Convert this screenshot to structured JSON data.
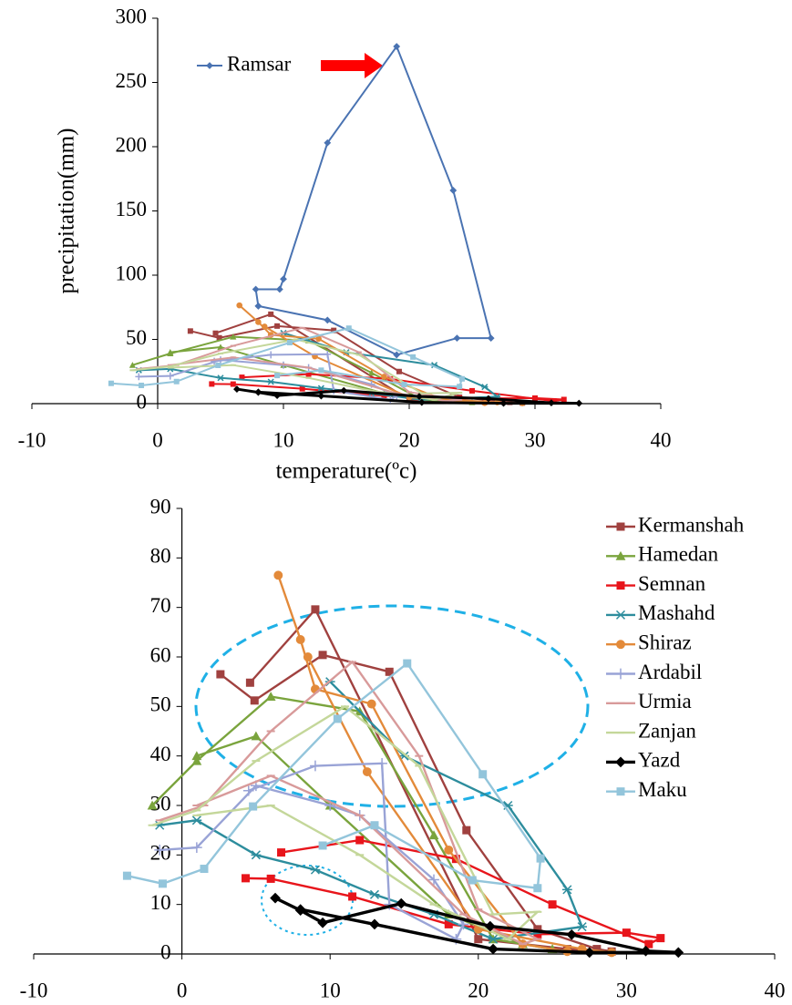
{
  "chart_data": [
    {
      "type": "line",
      "xlabel": "temperature(ºc)",
      "ylabel": "precipitation(mm)",
      "xlim": [
        -10,
        40
      ],
      "xticks": [
        -10,
        0,
        10,
        20,
        30,
        40
      ],
      "ylim": [
        0,
        300
      ],
      "yticks": [
        0,
        50,
        100,
        150,
        200,
        250,
        300
      ],
      "legend": "annotation",
      "series": [
        {
          "name": "Ramsar",
          "color": "#4a73b2",
          "marker": "diamond",
          "x": [
            8,
            7.8,
            9.7,
            10,
            13.5,
            19,
            23.5,
            26.5,
            23.8,
            19,
            13.5,
            8
          ],
          "values": [
            76,
            89,
            89,
            97,
            203,
            278,
            166,
            51,
            51,
            38,
            65,
            76
          ]
        },
        {
          "color": "#a0413f",
          "marker": "square",
          "x": [
            2.6,
            4.9,
            9.5,
            14,
            19.2,
            24,
            28,
            29,
            26,
            20,
            9,
            4.6
          ],
          "values": [
            56.5,
            51.2,
            60.4,
            57,
            25,
            5,
            1,
            0.5,
            1,
            3,
            69.6,
            54.8
          ]
        },
        {
          "color": "#7aa43d",
          "marker": "triangle",
          "x": [
            -2,
            1,
            6,
            12,
            17,
            21,
            25,
            23,
            18,
            10,
            5,
            1
          ],
          "values": [
            30,
            39,
            52,
            49,
            24,
            3,
            1,
            2,
            8,
            30,
            44,
            40
          ]
        },
        {
          "color": "#e8151b",
          "marker": "square",
          "x": [
            4.3,
            6,
            11.5,
            18,
            24,
            30,
            32.3,
            31.5,
            25,
            18.5,
            12,
            6.7
          ],
          "values": [
            15.3,
            15.2,
            11.6,
            6,
            4,
            4.3,
            3.2,
            2,
            10,
            19.2,
            23,
            20.5
          ]
        },
        {
          "color": "#2d8d9d",
          "marker": "star",
          "x": [
            -1.5,
            1,
            5,
            9,
            13,
            17,
            21,
            27,
            26,
            22,
            15,
            10
          ],
          "values": [
            26,
            27,
            20,
            17,
            12,
            8,
            3,
            5.5,
            13,
            30,
            40,
            55
          ]
        },
        {
          "color": "#e38a3a",
          "marker": "circle",
          "x": [
            6.5,
            8,
            9,
            12.8,
            18,
            23,
            26,
            29,
            27,
            20,
            12.5,
            8.5
          ],
          "values": [
            76.5,
            63.5,
            53.5,
            50.5,
            21,
            2,
            0.5,
            0.3,
            1,
            5,
            36.8,
            60
          ]
        },
        {
          "color": "#99a3d6",
          "marker": "plus",
          "x": [
            -1.5,
            1,
            5,
            10,
            12,
            17,
            19,
            18.5,
            14,
            13.5,
            9,
            4.5
          ],
          "values": [
            21,
            21.5,
            34,
            30,
            28,
            15,
            6,
            3,
            10,
            38.5,
            38,
            33
          ]
        },
        {
          "color": "#d89a9a",
          "marker": "dash",
          "x": [
            -1.5,
            1.5,
            6,
            11.5,
            16,
            20,
            24,
            23,
            19,
            12,
            6,
            1
          ],
          "values": [
            27,
            30,
            45,
            59,
            40,
            9,
            3,
            2,
            8,
            28,
            36,
            30
          ]
        },
        {
          "color": "#c4d79a",
          "marker": "dash",
          "x": [
            -2,
            1,
            5,
            11,
            16,
            21,
            24,
            22,
            17,
            12,
            6,
            1
          ],
          "values": [
            26,
            29,
            39,
            50,
            38,
            8,
            8.5,
            3,
            10,
            20,
            30,
            28
          ]
        },
        {
          "color": "#000000",
          "marker": "diamond",
          "x": [
            6.3,
            8,
            9.5,
            14.8,
            20.8,
            26.3,
            31.3,
            33.5,
            27.5,
            21,
            13,
            8
          ],
          "values": [
            11.3,
            8.8,
            6.3,
            10.2,
            5.6,
            3.9,
            0.6,
            0.3,
            0.3,
            1,
            6,
            9
          ]
        },
        {
          "color": "#93c5db",
          "marker": "square",
          "x": [
            -3.7,
            -1.3,
            1.5,
            4.8,
            10.5,
            15.2,
            20.3,
            24.2,
            24,
            19.6,
            13,
            9.5
          ],
          "values": [
            15.8,
            14.2,
            17.2,
            29.8,
            47.5,
            58.7,
            36.3,
            19.3,
            13.3,
            14.9,
            26,
            21.9
          ]
        }
      ]
    },
    {
      "type": "line",
      "xlim": [
        -10,
        40
      ],
      "xticks": [
        -10,
        0,
        10,
        20,
        30,
        40
      ],
      "ylim": [
        0,
        90
      ],
      "yticks": [
        0,
        10,
        20,
        30,
        40,
        50,
        60,
        70,
        80,
        90
      ],
      "legend": "upper right",
      "series": [
        {
          "name": "Kermanshah",
          "color": "#a0413f",
          "marker": "square",
          "x": [
            2.6,
            4.9,
            9.5,
            14,
            19.2,
            24,
            28,
            29,
            26,
            20,
            9,
            4.6
          ],
          "values": [
            56.5,
            51.2,
            60.4,
            57,
            25,
            5,
            1,
            0.5,
            1,
            3,
            69.6,
            54.8
          ]
        },
        {
          "name": "Hamedan",
          "color": "#7aa43d",
          "marker": "triangle",
          "x": [
            -2,
            1,
            6,
            12,
            17,
            21,
            25,
            23,
            18,
            10,
            5,
            1
          ],
          "values": [
            30,
            39,
            52,
            49,
            24,
            3,
            1,
            2,
            8,
            30,
            44,
            40
          ]
        },
        {
          "name": "Semnan",
          "color": "#e8151b",
          "marker": "square",
          "x": [
            4.3,
            6,
            11.5,
            18,
            24,
            30,
            32.3,
            31.5,
            25,
            18.5,
            12,
            6.7
          ],
          "values": [
            15.3,
            15.2,
            11.6,
            6,
            4,
            4.3,
            3.2,
            2,
            10,
            19.2,
            23,
            20.5
          ]
        },
        {
          "name": "Mashahd",
          "color": "#2d8d9d",
          "marker": "star",
          "x": [
            -1.5,
            1,
            5,
            9,
            13,
            17,
            21,
            27,
            26,
            22,
            15,
            10
          ],
          "values": [
            26,
            27,
            20,
            17,
            12,
            8,
            3,
            5.5,
            13,
            30,
            40,
            55
          ]
        },
        {
          "name": "Shiraz",
          "color": "#e38a3a",
          "marker": "circle",
          "x": [
            6.5,
            8,
            9,
            12.8,
            18,
            23,
            26,
            29,
            27,
            20,
            12.5,
            8.5
          ],
          "values": [
            76.5,
            63.5,
            53.5,
            50.5,
            21,
            2,
            0.5,
            0.3,
            1,
            5,
            36.8,
            60
          ]
        },
        {
          "name": "Ardabil",
          "color": "#99a3d6",
          "marker": "plus",
          "x": [
            -1.5,
            1,
            5,
            10,
            12,
            17,
            19,
            18.5,
            14,
            13.5,
            9,
            4.5
          ],
          "values": [
            21,
            21.5,
            34,
            30,
            28,
            15,
            6,
            3,
            10,
            38.5,
            38,
            33
          ]
        },
        {
          "name": "Urmia",
          "color": "#d89a9a",
          "marker": "dash",
          "x": [
            -1.5,
            1.5,
            6,
            11.5,
            16,
            20,
            24,
            23,
            19,
            12,
            6,
            1
          ],
          "values": [
            27,
            30,
            45,
            59,
            40,
            9,
            3,
            2,
            8,
            28,
            36,
            30
          ]
        },
        {
          "name": "Zanjan",
          "color": "#c4d79a",
          "marker": "dash",
          "x": [
            -2,
            1,
            5,
            11,
            16,
            21,
            24,
            22,
            17,
            12,
            6,
            1
          ],
          "values": [
            26,
            29,
            39,
            50,
            38,
            8,
            8.5,
            3,
            10,
            20,
            30,
            28
          ]
        },
        {
          "name": "Yazd",
          "color": "#000000",
          "marker": "diamond",
          "x": [
            6.3,
            8,
            9.5,
            14.8,
            20.8,
            26.3,
            31.3,
            33.5,
            27.5,
            21,
            13,
            8
          ],
          "values": [
            11.3,
            8.8,
            6.3,
            10.2,
            5.6,
            3.9,
            0.6,
            0.3,
            0.3,
            1,
            6,
            9
          ]
        },
        {
          "name": "Maku",
          "color": "#93c5db",
          "marker": "square",
          "x": [
            -3.7,
            -1.3,
            1.5,
            4.8,
            10.5,
            15.2,
            20.3,
            24.2,
            24,
            19.6,
            13,
            9.5
          ],
          "values": [
            15.8,
            14.2,
            17.2,
            29.8,
            47.5,
            58.7,
            36.3,
            19.3,
            13.3,
            14.9,
            26,
            21.9
          ]
        }
      ]
    }
  ]
}
